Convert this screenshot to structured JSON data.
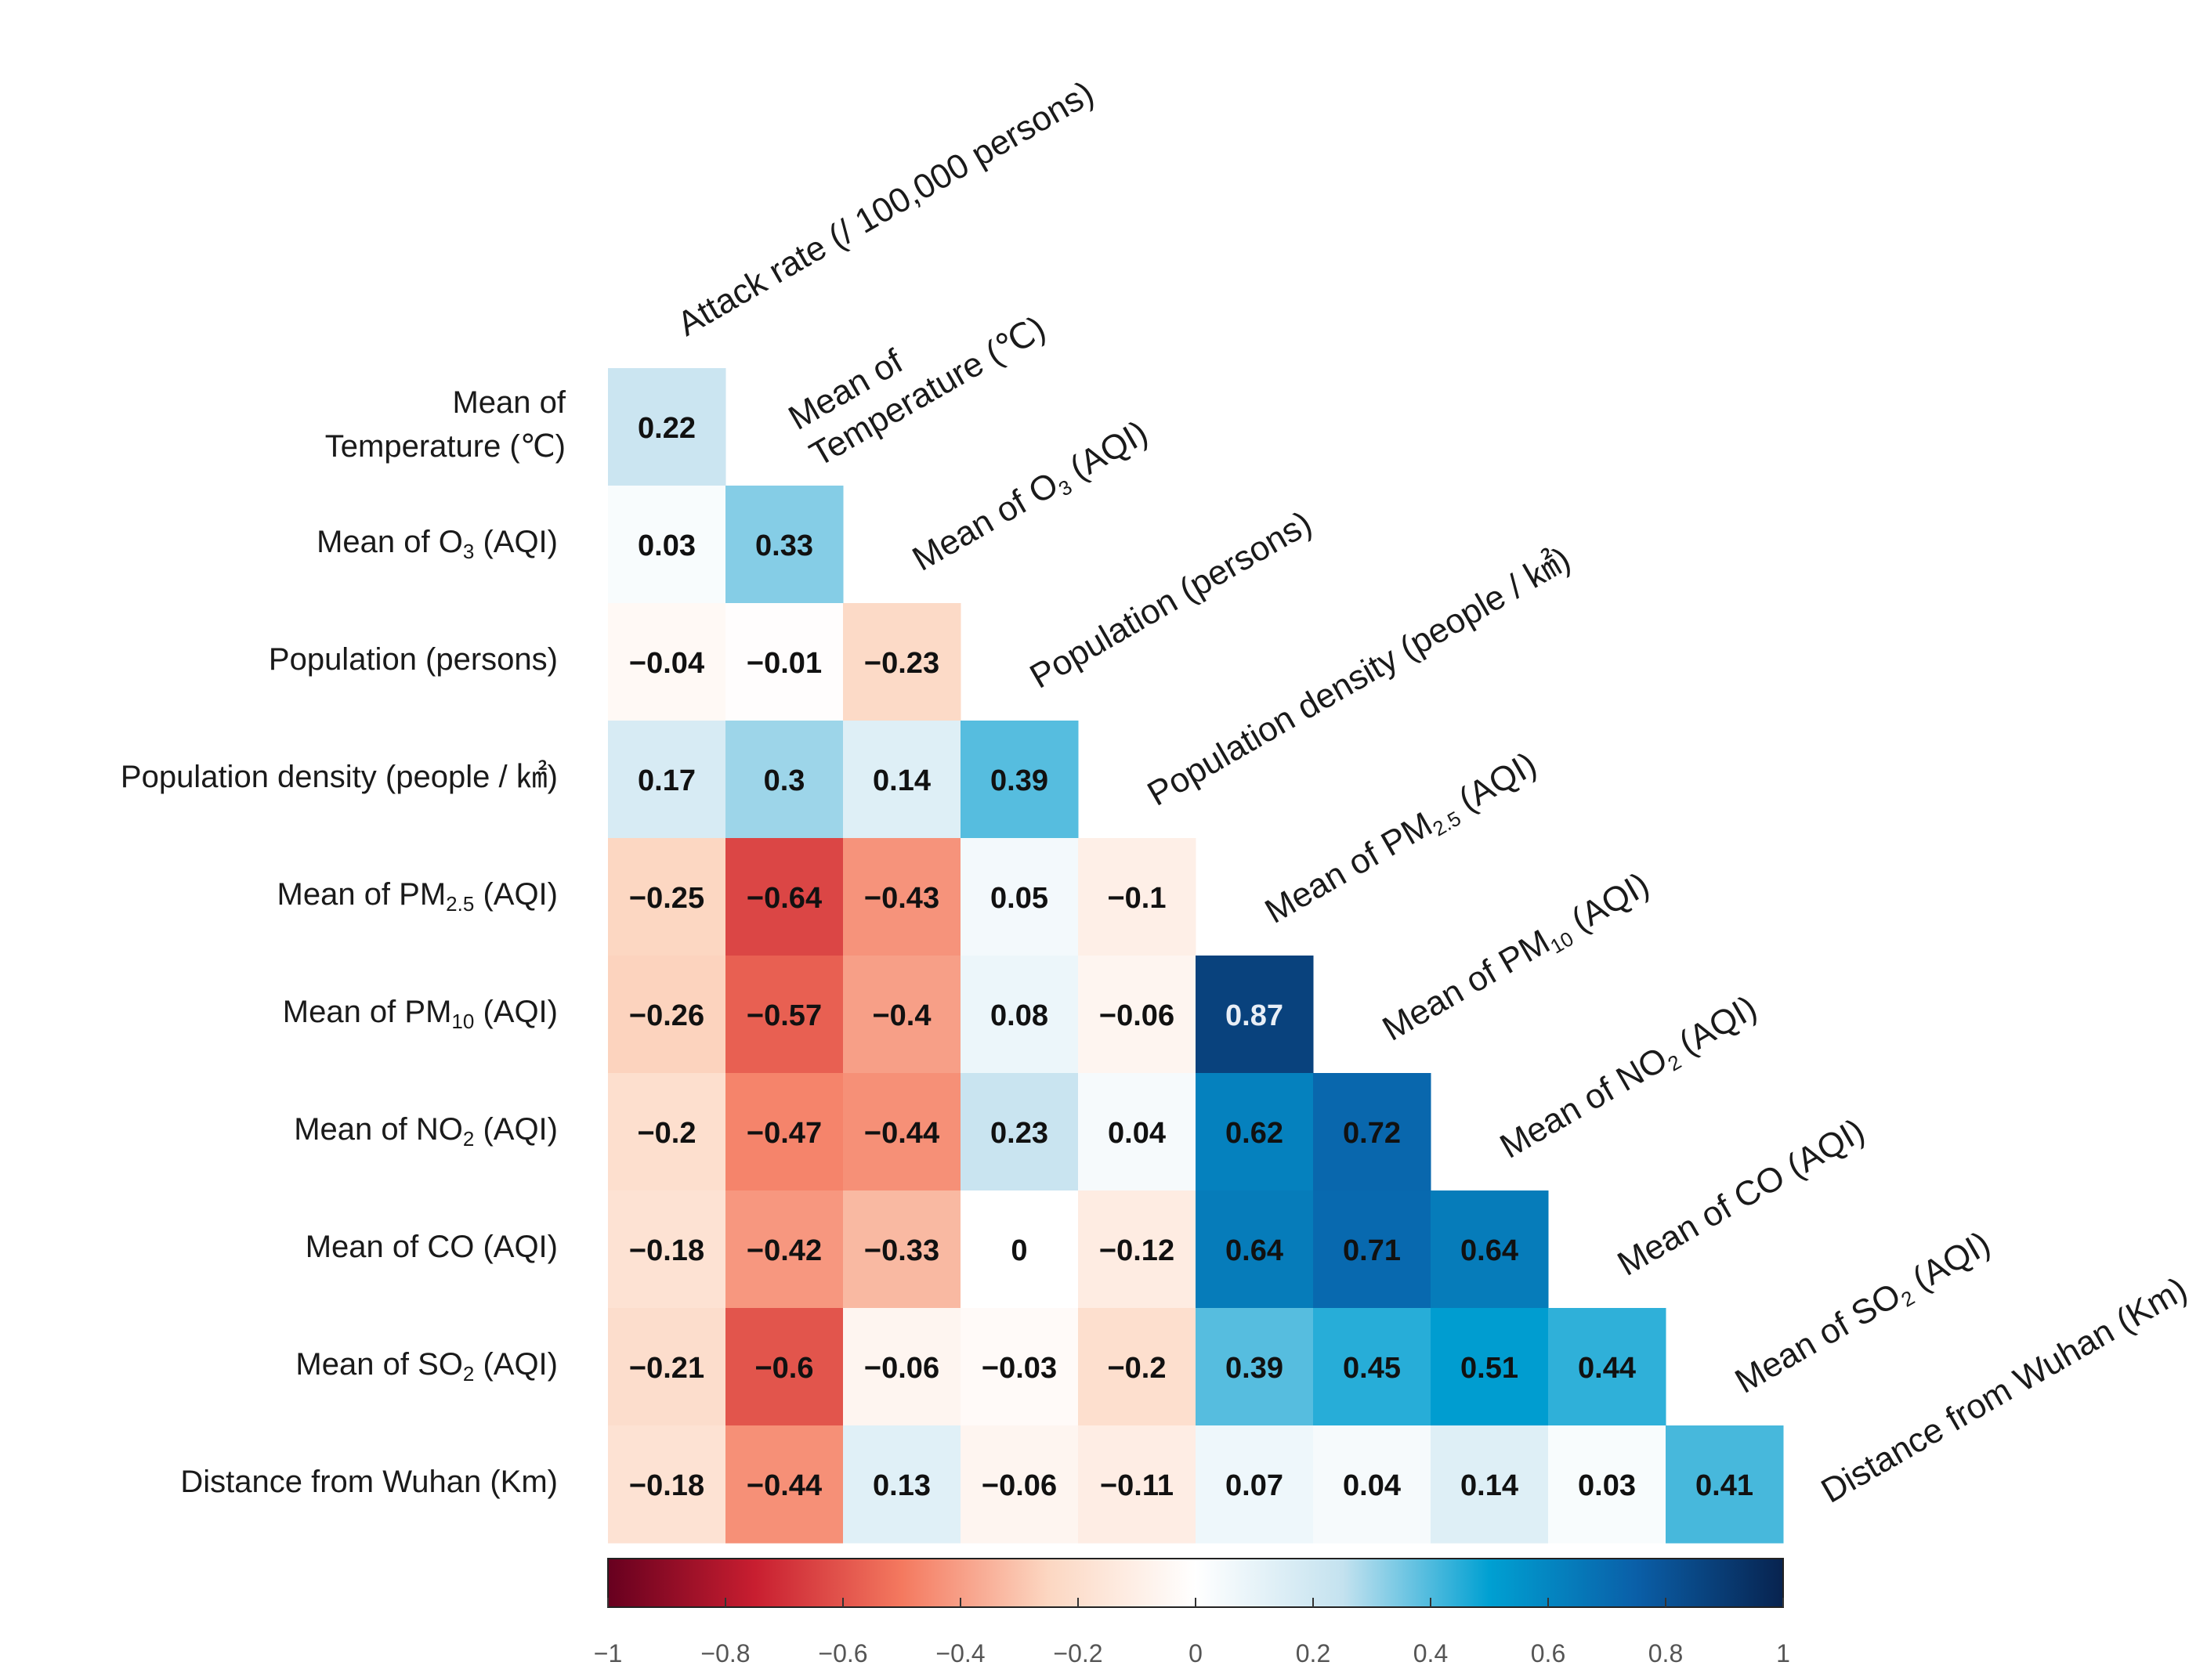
{
  "chart_data": {
    "type": "heatmap",
    "title": "",
    "layout": "lower-triangle correlation matrix",
    "variables": [
      {
        "label": "Attack rate (/ 100,000 persons)",
        "parts": [
          {
            "t": "Attack rate (/ 100,000 persons)"
          }
        ]
      },
      {
        "label": "Mean of Temperature (℃)",
        "parts": [
          {
            "t": "Mean of Temperature (℃)"
          }
        ],
        "row_lines": [
          "Mean of",
          "Temperature (℃)"
        ]
      },
      {
        "label": "Mean of O3 (AQI)",
        "parts": [
          {
            "t": "Mean of O"
          },
          {
            "t": "3",
            "sub": true
          },
          {
            "t": " (AQI)"
          }
        ]
      },
      {
        "label": "Population (persons)",
        "parts": [
          {
            "t": "Population (persons)"
          }
        ]
      },
      {
        "label": "Population density (people / ㎢)",
        "parts": [
          {
            "t": "Population density (people / ㎢)"
          }
        ]
      },
      {
        "label": "Mean of PM2.5 (AQI)",
        "parts": [
          {
            "t": "Mean of PM"
          },
          {
            "t": "2.5",
            "sub": true
          },
          {
            "t": " (AQI)"
          }
        ]
      },
      {
        "label": "Mean of PM10 (AQI)",
        "parts": [
          {
            "t": "Mean of PM"
          },
          {
            "t": "10",
            "sub": true
          },
          {
            "t": " (AQI)"
          }
        ]
      },
      {
        "label": "Mean of NO2 (AQI)",
        "parts": [
          {
            "t": "Mean of NO"
          },
          {
            "t": "2",
            "sub": true
          },
          {
            "t": " (AQI)"
          }
        ]
      },
      {
        "label": "Mean of CO (AQI)",
        "parts": [
          {
            "t": "Mean of CO (AQI)"
          }
        ]
      },
      {
        "label": "Mean of SO2 (AQI)",
        "parts": [
          {
            "t": "Mean of SO"
          },
          {
            "t": "2",
            "sub": true
          },
          {
            "t": " (AQI)"
          }
        ]
      },
      {
        "label": "Distance from Wuhan (Km)",
        "parts": [
          {
            "t": "Distance from Wuhan (Km)"
          }
        ]
      }
    ],
    "matrix": [
      [
        0.22
      ],
      [
        0.03,
        0.33
      ],
      [
        -0.04,
        -0.01,
        -0.23
      ],
      [
        0.17,
        0.3,
        0.14,
        0.39
      ],
      [
        -0.25,
        -0.64,
        -0.43,
        0.05,
        -0.1
      ],
      [
        -0.26,
        -0.57,
        -0.4,
        0.08,
        -0.06,
        0.87
      ],
      [
        -0.2,
        -0.47,
        -0.44,
        0.23,
        0.04,
        0.62,
        0.72
      ],
      [
        -0.18,
        -0.42,
        -0.33,
        0,
        -0.12,
        0.64,
        0.71,
        0.64
      ],
      [
        -0.21,
        -0.6,
        -0.06,
        -0.03,
        -0.2,
        0.39,
        0.45,
        0.51,
        0.44
      ],
      [
        -0.18,
        -0.44,
        0.13,
        -0.06,
        -0.11,
        0.07,
        0.04,
        0.14,
        0.03,
        0.41
      ]
    ],
    "colorbar": {
      "range": [
        -1,
        1
      ],
      "ticks": [
        -1,
        -0.8,
        -0.6,
        -0.4,
        -0.2,
        0,
        0.2,
        0.4,
        0.6,
        0.8,
        1
      ],
      "tick_labels": [
        "−1",
        "−0.8",
        "−0.6",
        "−0.4",
        "−0.2",
        "0",
        "0.2",
        "0.4",
        "0.6",
        "0.8",
        "1"
      ],
      "colors": [
        "#67001f",
        "#c81e30",
        "#f4795f",
        "#fcd7c2",
        "#ffffff",
        "#c4e2ef",
        "#00a0d2",
        "#0a5fa8",
        "#08234f"
      ]
    }
  }
}
